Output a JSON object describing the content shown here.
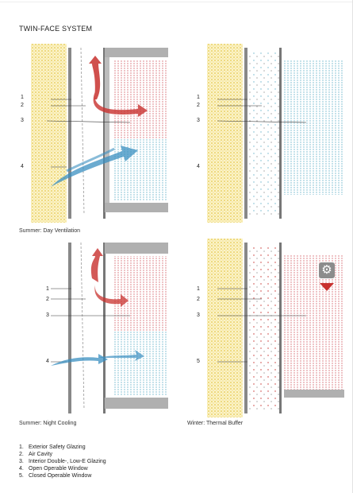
{
  "title": "TWIN-FACE SYSTEM",
  "panels": [
    {
      "caption": "Summer: Day Ventilation",
      "callouts": [
        "1",
        "2",
        "3",
        "4"
      ]
    },
    {
      "caption": "",
      "callouts": [
        "1",
        "2",
        "3",
        "4"
      ]
    },
    {
      "caption": "Summer: Night Cooling",
      "callouts": [
        "1",
        "2",
        "3",
        "4"
      ]
    },
    {
      "caption": "Winter: Thermal Buffer",
      "callouts": [
        "1",
        "2",
        "3",
        "5"
      ]
    }
  ],
  "legend": [
    {
      "index": "1.",
      "text": "Exterior  Safety Glazing"
    },
    {
      "index": "2.",
      "text": "Air Cavity"
    },
    {
      "index": "3.",
      "text": "Interior Double-, Low-E Glazing"
    },
    {
      "index": "4.",
      "text": "Open Operable Window"
    },
    {
      "index": "5.",
      "text": "Closed Operable Window"
    }
  ],
  "colors": {
    "stone": "#e8c94a",
    "warm_air": "#c8312e",
    "cool_air": "#3a8fc0",
    "dots_warm": "#d76a72",
    "dots_cool": "#6db6cc",
    "structure": "#9a9a9a",
    "gear": "#8c8c8c"
  },
  "icons": [
    "gear-icon",
    "down-arrow-icon"
  ]
}
